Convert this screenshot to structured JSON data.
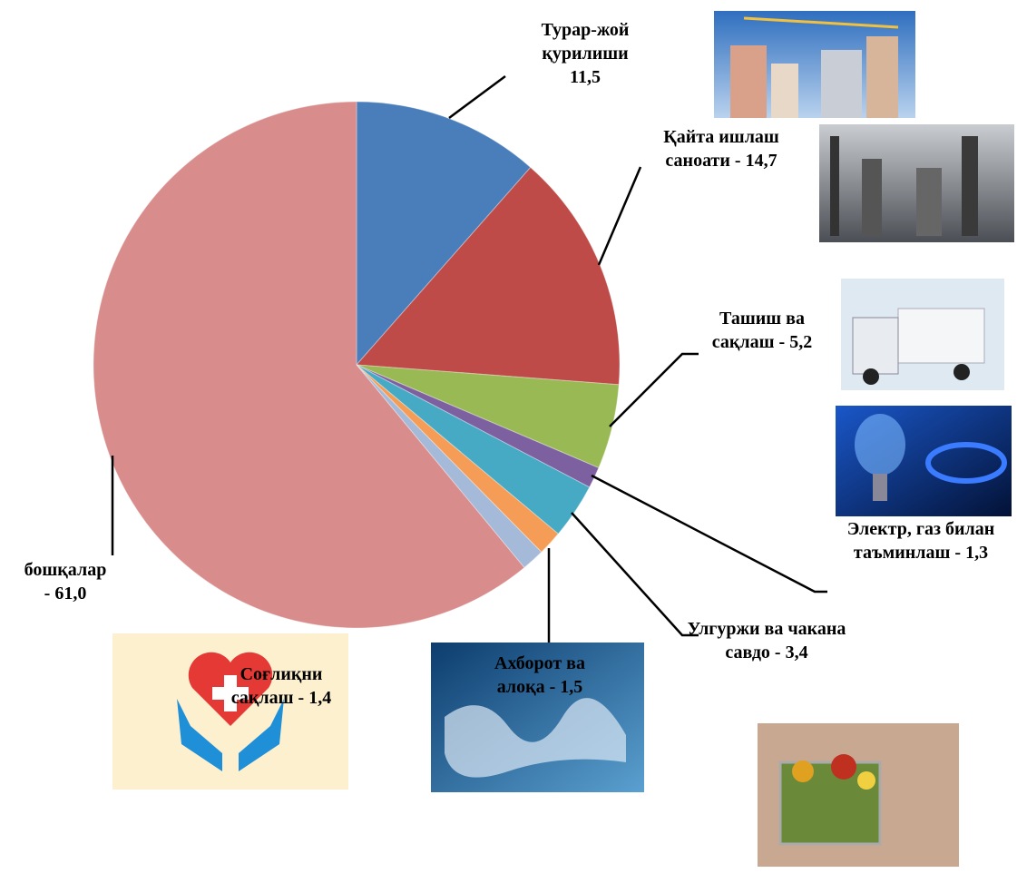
{
  "chart_data": {
    "type": "pie",
    "categories": [
      "Турар-жой қурилиши",
      "Қайта ишлаш саноати -",
      "Ташиш ва сақлаш -",
      "Электр, газ билан таъминлаш -",
      "Улгуржи ва чакана савдо -",
      "Ахборот ва алоқа -",
      "Соғлиқни сақлаш -",
      "бошқалар -"
    ],
    "values": [
      11.5,
      14.7,
      5.2,
      1.3,
      3.4,
      1.5,
      1.4,
      61.0
    ],
    "value_labels": [
      "11,5",
      "14,7",
      "5,2",
      "1,3",
      "3,4",
      "1,5",
      "1,4",
      "61,0"
    ],
    "colors": [
      "#4a7ebb",
      "#be4b48",
      "#98b954",
      "#7d60a0",
      "#46aac5",
      "#f59d56",
      "#a5b9d8",
      "#d98c8c"
    ]
  }
}
